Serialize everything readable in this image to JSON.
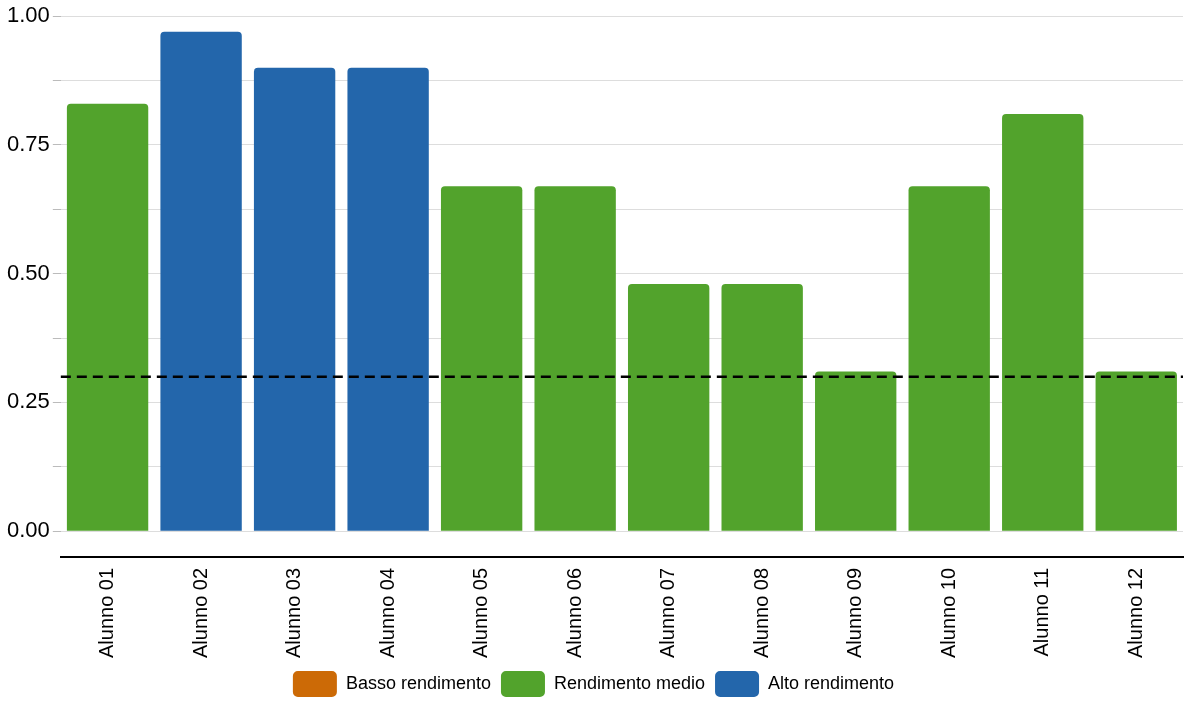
{
  "chart_data": {
    "type": "bar",
    "categories": [
      "Alunno 01",
      "Alunno 02",
      "Alunno 03",
      "Alunno 04",
      "Alunno 05",
      "Alunno 06",
      "Alunno 07",
      "Alunno 08",
      "Alunno 09",
      "Alunno 10",
      "Alunno 11",
      "Alunno 12"
    ],
    "series": [
      {
        "name": "Basso rendimento",
        "color": "#cc6a06",
        "values": [
          null,
          null,
          null,
          null,
          null,
          null,
          null,
          null,
          null,
          null,
          null,
          null
        ]
      },
      {
        "name": "Rendimento medio",
        "color": "#52a32c",
        "values": [
          0.83,
          null,
          null,
          null,
          0.67,
          0.67,
          0.48,
          0.48,
          0.31,
          0.67,
          0.81,
          0.31
        ]
      },
      {
        "name": "Alto rendimento",
        "color": "#2366ab",
        "values": [
          null,
          0.97,
          0.9,
          0.9,
          null,
          null,
          null,
          null,
          null,
          null,
          null,
          null
        ]
      }
    ],
    "ylim": [
      -0.05,
      1.0
    ],
    "yticks": [
      {
        "value": 0,
        "label": "0.00"
      },
      {
        "value": 0.125,
        "label": null
      },
      {
        "value": 0.25,
        "label": "0.25"
      },
      {
        "value": 0.375,
        "label": null
      },
      {
        "value": 0.5,
        "label": "0.50"
      },
      {
        "value": 0.625,
        "label": null
      },
      {
        "value": 0.75,
        "label": "0.75"
      },
      {
        "value": 0.875,
        "label": null
      },
      {
        "value": 1,
        "label": "1.00"
      }
    ],
    "ref_lines": [
      {
        "axis": "y",
        "value": 0.3,
        "color": "#000000",
        "line_style": "dashed"
      }
    ],
    "grid": "y",
    "legend": "bottom"
  }
}
